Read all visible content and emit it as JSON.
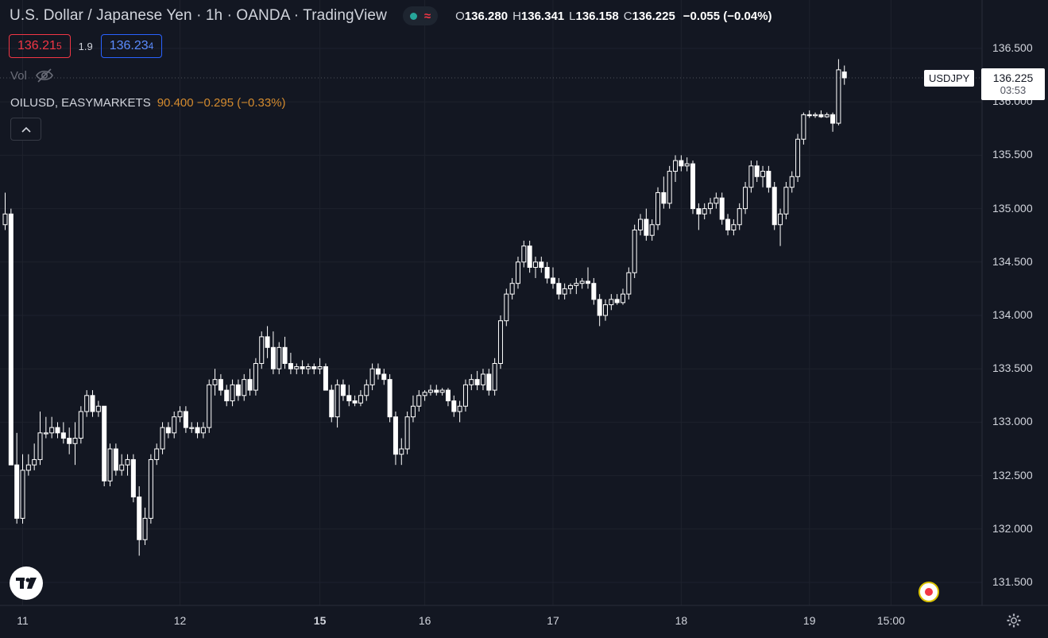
{
  "header": {
    "title": "U.S. Dollar / Japanese Yen · 1h · OANDA · TradingView",
    "ohlc": {
      "o_label": "O",
      "o": "136.280",
      "h_label": "H",
      "h": "136.341",
      "l_label": "L",
      "l": "136.158",
      "c_label": "C",
      "c": "136.225",
      "change": "−0.055 (−0.04%)"
    },
    "status_icons": [
      "market-open-dot-icon",
      "delayed-wave-icon"
    ]
  },
  "trade": {
    "sell_main": "136.21",
    "sell_small": "5",
    "spread": "1.9",
    "buy_main": "136.23",
    "buy_small": "4"
  },
  "volume": {
    "label": "Vol",
    "icon": "eye-crossed-icon"
  },
  "overlay": {
    "symbol": "OILUSD, EASYMARKETS",
    "value": "90.400",
    "change": "−0.295 (−0.33%)"
  },
  "price_tag": {
    "symbol": "USDJPY",
    "price": "136.225",
    "countdown": "03:53"
  },
  "colors": {
    "background": "#131722",
    "grid": "#1e222d",
    "candle_up": "#131722",
    "candle_down": "#ffffff",
    "wick": "#ffffff",
    "oil_line": "#d48b2e",
    "sell": "#f23645",
    "buy": "#2962ff"
  },
  "chart_data": {
    "type": "candlestick",
    "symbol": "USDJPY",
    "interval": "1h",
    "ylim": [
      131.35,
      136.6
    ],
    "y_ticks": [
      "136.500",
      "136.000",
      "135.500",
      "135.000",
      "134.500",
      "134.000",
      "133.500",
      "133.000",
      "132.500",
      "132.000",
      "131.500"
    ],
    "x_ticks": [
      {
        "label": "11",
        "bar": 3,
        "bold": false
      },
      {
        "label": "12",
        "bar": 30,
        "bold": false
      },
      {
        "label": "15",
        "bar": 54,
        "bold": true
      },
      {
        "label": "16",
        "bar": 72,
        "bold": false
      },
      {
        "label": "17",
        "bar": 94,
        "bold": false
      },
      {
        "label": "18",
        "bar": 116,
        "bold": false
      },
      {
        "label": "19",
        "bar": 138,
        "bold": false
      },
      {
        "label": "15:00",
        "bar": 152,
        "bold": false
      }
    ],
    "ohlc": [
      [
        134.85,
        135.15,
        134.8,
        134.95
      ],
      [
        134.95,
        135.0,
        132.6,
        132.6
      ],
      [
        132.6,
        132.9,
        132.05,
        132.1
      ],
      [
        132.1,
        132.7,
        132.05,
        132.55
      ],
      [
        132.55,
        132.7,
        132.5,
        132.6
      ],
      [
        132.6,
        132.8,
        132.55,
        132.65
      ],
      [
        132.65,
        133.1,
        132.6,
        132.9
      ],
      [
        132.9,
        133.05,
        132.85,
        132.9
      ],
      [
        132.9,
        133.05,
        132.85,
        132.95
      ],
      [
        132.95,
        133.0,
        132.85,
        132.9
      ],
      [
        132.9,
        133.0,
        132.8,
        132.85
      ],
      [
        132.85,
        132.95,
        132.7,
        132.8
      ],
      [
        132.8,
        133.0,
        132.6,
        132.85
      ],
      [
        132.85,
        133.15,
        132.8,
        133.1
      ],
      [
        133.1,
        133.3,
        133.05,
        133.25
      ],
      [
        133.25,
        133.3,
        133.05,
        133.1
      ],
      [
        133.1,
        133.2,
        133.05,
        133.15
      ],
      [
        133.15,
        133.15,
        132.4,
        132.45
      ],
      [
        132.45,
        132.8,
        132.4,
        132.75
      ],
      [
        132.75,
        132.8,
        132.5,
        132.55
      ],
      [
        132.55,
        132.7,
        132.5,
        132.6
      ],
      [
        132.6,
        132.7,
        132.5,
        132.65
      ],
      [
        132.65,
        132.7,
        132.25,
        132.3
      ],
      [
        132.3,
        132.4,
        131.75,
        131.9
      ],
      [
        131.9,
        132.2,
        131.85,
        132.1
      ],
      [
        132.1,
        132.7,
        132.05,
        132.65
      ],
      [
        132.65,
        132.8,
        132.6,
        132.75
      ],
      [
        132.75,
        133.0,
        132.7,
        132.95
      ],
      [
        132.95,
        133.0,
        132.85,
        132.9
      ],
      [
        132.9,
        133.1,
        132.85,
        133.05
      ],
      [
        133.05,
        133.15,
        133.0,
        133.1
      ],
      [
        133.1,
        133.15,
        132.9,
        132.95
      ],
      [
        132.95,
        133.0,
        132.9,
        132.95
      ],
      [
        132.95,
        133.0,
        132.85,
        132.9
      ],
      [
        132.9,
        133.0,
        132.85,
        132.95
      ],
      [
        132.95,
        133.4,
        132.9,
        133.35
      ],
      [
        133.35,
        133.5,
        133.25,
        133.4
      ],
      [
        133.4,
        133.45,
        133.25,
        133.3
      ],
      [
        133.3,
        133.35,
        133.15,
        133.2
      ],
      [
        133.2,
        133.4,
        133.15,
        133.35
      ],
      [
        133.35,
        133.4,
        133.2,
        133.25
      ],
      [
        133.25,
        133.45,
        133.2,
        133.4
      ],
      [
        133.4,
        133.5,
        133.25,
        133.3
      ],
      [
        133.3,
        133.6,
        133.25,
        133.55
      ],
      [
        133.55,
        133.85,
        133.5,
        133.8
      ],
      [
        133.8,
        133.9,
        133.6,
        133.7
      ],
      [
        133.7,
        133.85,
        133.45,
        133.5
      ],
      [
        133.5,
        133.75,
        133.45,
        133.7
      ],
      [
        133.7,
        133.8,
        133.5,
        133.55
      ],
      [
        133.55,
        133.65,
        133.45,
        133.5
      ],
      [
        133.5,
        133.55,
        133.45,
        133.52
      ],
      [
        133.52,
        133.58,
        133.45,
        133.5
      ],
      [
        133.5,
        133.55,
        133.45,
        133.52
      ],
      [
        133.52,
        133.55,
        133.45,
        133.5
      ],
      [
        133.5,
        133.6,
        133.45,
        133.52
      ],
      [
        133.52,
        133.55,
        133.3,
        133.3
      ],
      [
        133.3,
        133.35,
        133.0,
        133.05
      ],
      [
        133.05,
        133.4,
        132.95,
        133.35
      ],
      [
        133.35,
        133.4,
        133.2,
        133.25
      ],
      [
        133.25,
        133.35,
        133.15,
        133.2
      ],
      [
        133.2,
        133.25,
        133.15,
        133.18
      ],
      [
        133.18,
        133.3,
        133.15,
        133.25
      ],
      [
        133.25,
        133.4,
        133.2,
        133.35
      ],
      [
        133.35,
        133.55,
        133.3,
        133.5
      ],
      [
        133.5,
        133.55,
        133.4,
        133.45
      ],
      [
        133.45,
        133.5,
        133.35,
        133.4
      ],
      [
        133.4,
        133.45,
        133.0,
        133.05
      ],
      [
        133.05,
        133.1,
        132.6,
        132.7
      ],
      [
        132.7,
        132.85,
        132.6,
        132.75
      ],
      [
        132.75,
        133.1,
        132.7,
        133.05
      ],
      [
        133.05,
        133.25,
        133.0,
        133.15
      ],
      [
        133.15,
        133.3,
        133.1,
        133.25
      ],
      [
        133.25,
        133.3,
        133.2,
        133.28
      ],
      [
        133.28,
        133.35,
        133.25,
        133.3
      ],
      [
        133.3,
        133.35,
        133.25,
        133.28
      ],
      [
        133.28,
        133.32,
        133.25,
        133.3
      ],
      [
        133.3,
        133.32,
        133.15,
        133.2
      ],
      [
        133.2,
        133.25,
        133.05,
        133.1
      ],
      [
        133.1,
        133.2,
        133.0,
        133.15
      ],
      [
        133.15,
        133.4,
        133.1,
        133.35
      ],
      [
        133.35,
        133.45,
        133.3,
        133.4
      ],
      [
        133.4,
        133.48,
        133.3,
        133.35
      ],
      [
        133.35,
        133.5,
        133.3,
        133.45
      ],
      [
        133.45,
        133.5,
        133.25,
        133.3
      ],
      [
        133.3,
        133.6,
        133.25,
        133.55
      ],
      [
        133.55,
        134.0,
        133.5,
        133.95
      ],
      [
        133.95,
        134.25,
        133.9,
        134.2
      ],
      [
        134.2,
        134.35,
        134.15,
        134.3
      ],
      [
        134.3,
        134.55,
        134.25,
        134.5
      ],
      [
        134.5,
        134.7,
        134.45,
        134.65
      ],
      [
        134.65,
        134.7,
        134.4,
        134.45
      ],
      [
        134.45,
        134.55,
        134.35,
        134.5
      ],
      [
        134.5,
        134.55,
        134.4,
        134.45
      ],
      [
        134.45,
        134.5,
        134.3,
        134.35
      ],
      [
        134.35,
        134.45,
        134.25,
        134.3
      ],
      [
        134.3,
        134.35,
        134.15,
        134.2
      ],
      [
        134.2,
        134.3,
        134.15,
        134.25
      ],
      [
        134.25,
        134.3,
        134.2,
        134.28
      ],
      [
        134.28,
        134.35,
        134.2,
        134.3
      ],
      [
        134.3,
        134.35,
        134.25,
        134.32
      ],
      [
        134.32,
        134.45,
        134.25,
        134.3
      ],
      [
        134.3,
        134.35,
        134.1,
        134.15
      ],
      [
        134.15,
        134.2,
        133.9,
        134.0
      ],
      [
        134.0,
        134.15,
        133.95,
        134.1
      ],
      [
        134.1,
        134.2,
        134.05,
        134.15
      ],
      [
        134.15,
        134.2,
        134.1,
        134.12
      ],
      [
        134.12,
        134.25,
        134.1,
        134.2
      ],
      [
        134.2,
        134.45,
        134.15,
        134.4
      ],
      [
        134.4,
        134.85,
        134.35,
        134.8
      ],
      [
        134.8,
        134.95,
        134.75,
        134.9
      ],
      [
        134.9,
        135.0,
        134.7,
        134.75
      ],
      [
        134.75,
        134.9,
        134.7,
        134.85
      ],
      [
        134.85,
        135.2,
        134.8,
        135.15
      ],
      [
        135.15,
        135.3,
        135.0,
        135.05
      ],
      [
        135.05,
        135.4,
        135.0,
        135.35
      ],
      [
        135.35,
        135.5,
        135.25,
        135.45
      ],
      [
        135.45,
        135.5,
        135.35,
        135.4
      ],
      [
        135.4,
        135.48,
        135.35,
        135.42
      ],
      [
        135.42,
        135.45,
        134.95,
        135.0
      ],
      [
        135.0,
        135.05,
        134.8,
        134.95
      ],
      [
        134.95,
        135.05,
        134.9,
        135.0
      ],
      [
        135.0,
        135.1,
        134.95,
        135.05
      ],
      [
        135.05,
        135.15,
        135.0,
        135.1
      ],
      [
        135.1,
        135.15,
        134.85,
        134.9
      ],
      [
        134.9,
        134.95,
        134.75,
        134.8
      ],
      [
        134.8,
        134.9,
        134.75,
        134.85
      ],
      [
        134.85,
        135.05,
        134.8,
        135.0
      ],
      [
        135.0,
        135.25,
        134.95,
        135.2
      ],
      [
        135.2,
        135.45,
        135.15,
        135.4
      ],
      [
        135.4,
        135.45,
        135.25,
        135.3
      ],
      [
        135.3,
        135.4,
        135.2,
        135.35
      ],
      [
        135.35,
        135.4,
        135.15,
        135.2
      ],
      [
        135.2,
        135.25,
        134.8,
        134.85
      ],
      [
        134.85,
        135.0,
        134.65,
        134.95
      ],
      [
        134.95,
        135.25,
        134.9,
        135.2
      ],
      [
        135.2,
        135.35,
        135.15,
        135.3
      ],
      [
        135.3,
        135.7,
        135.25,
        135.65
      ],
      [
        135.65,
        135.9,
        135.6,
        135.88
      ],
      [
        135.88,
        135.92,
        135.85,
        135.87
      ],
      [
        135.87,
        135.9,
        135.85,
        135.88
      ],
      [
        135.88,
        135.92,
        135.85,
        135.86
      ],
      [
        135.86,
        135.9,
        135.85,
        135.88
      ],
      [
        135.88,
        135.9,
        135.72,
        135.8
      ],
      [
        135.8,
        136.4,
        135.78,
        136.3
      ],
      [
        136.28,
        136.34,
        136.16,
        136.225
      ]
    ]
  }
}
